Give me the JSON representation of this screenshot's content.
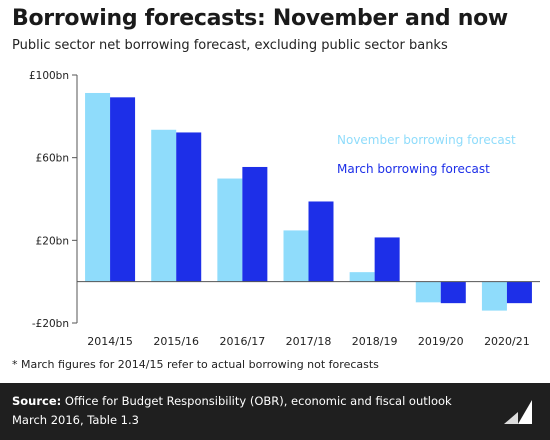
{
  "title": "Borrowing forecasts: November and now",
  "subtitle": "Public sector net borrowing forecast, excluding public sector banks",
  "footnote": "* March figures for 2014/15 refer to actual borrowing not forecasts",
  "source_label": "Source:",
  "source_text": "Office for Budget Responsibility (OBR), economic and fiscal outlook March 2016, Table 1.3",
  "logo_text": "Full Fact",
  "colors": {
    "november": "#8fdcfb",
    "march": "#1d2fe8",
    "axis": "#555555",
    "footer_bg": "#1f1f1f"
  },
  "chart_data": {
    "type": "bar",
    "categories": [
      "2014/15",
      "2015/16",
      "2016/17",
      "2017/18",
      "2018/19",
      "2019/20",
      "2020/21"
    ],
    "series": [
      {
        "name": "November borrowing forecast",
        "values": [
          91.3,
          73.5,
          49.9,
          24.8,
          4.6,
          -10.0,
          -14.0
        ]
      },
      {
        "name": "March borrowing forecast",
        "values": [
          89.2,
          72.2,
          55.5,
          38.8,
          21.4,
          -10.4,
          -10.4
        ]
      }
    ],
    "y_ticks": [
      {
        "value": 100,
        "label": "£100bn"
      },
      {
        "value": 60,
        "label": "£60bn"
      },
      {
        "value": 20,
        "label": "£20bn"
      },
      {
        "value": -20,
        "label": "-£20bn"
      }
    ],
    "ylim": [
      -20,
      100
    ],
    "legend_position": "right"
  }
}
